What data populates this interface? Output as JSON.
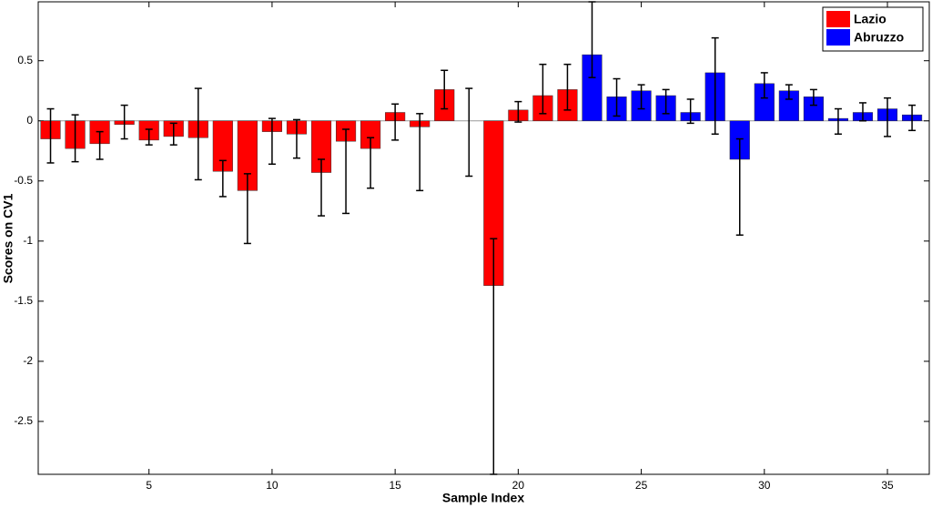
{
  "chart_data": {
    "type": "bar",
    "xlabel": "Sample Index",
    "ylabel": "Scores on CV1",
    "xlim": [
      0.5,
      36.7
    ],
    "ylim": [
      -2.94,
      0.99
    ],
    "xticks": [
      5,
      10,
      15,
      20,
      25,
      30,
      35
    ],
    "yticks": [
      0.5,
      0,
      -0.5,
      -1,
      -1.5,
      -2,
      -2.5
    ],
    "legend": "upper right",
    "series": [
      {
        "name": "Lazio",
        "color": "#ff0000",
        "x": [
          1,
          2,
          3,
          4,
          5,
          6,
          7,
          8,
          9,
          10,
          11,
          12,
          13,
          14,
          15,
          16,
          17,
          18,
          19,
          20,
          21,
          22
        ],
        "values": [
          -0.15,
          -0.23,
          -0.19,
          -0.03,
          -0.16,
          -0.13,
          -0.14,
          -0.42,
          -0.58,
          -0.09,
          -0.11,
          -0.43,
          -0.17,
          -0.23,
          0.07,
          -0.05,
          0.26,
          0,
          -1.37,
          0.09,
          0.21,
          0.26
        ],
        "error_bars": [
          [
            -0.35,
            0.1
          ],
          [
            -0.34,
            0.05
          ],
          [
            -0.32,
            -0.09
          ],
          [
            -0.15,
            0.13
          ],
          [
            -0.2,
            -0.07
          ],
          [
            -0.2,
            -0.02
          ],
          [
            -0.49,
            0.27
          ],
          [
            -0.63,
            -0.33
          ],
          [
            -1.02,
            -0.44
          ],
          [
            -0.36,
            0.02
          ],
          [
            -0.31,
            0.01
          ],
          [
            -0.79,
            -0.32
          ],
          [
            -0.77,
            -0.07
          ],
          [
            -0.56,
            -0.14
          ],
          [
            -0.16,
            0.14
          ],
          [
            -0.58,
            0.06
          ],
          [
            0.1,
            0.42
          ],
          [
            -0.46,
            0.27
          ],
          [
            -2.94,
            -0.98
          ],
          [
            -0.01,
            0.16
          ],
          [
            0.06,
            0.47
          ],
          [
            0.09,
            0.47
          ]
        ]
      },
      {
        "name": "Abruzzo",
        "color": "#0000ff",
        "x": [
          23,
          24,
          25,
          26,
          27,
          28,
          29,
          30,
          31,
          32,
          33,
          34,
          35,
          36
        ],
        "values": [
          0.55,
          0.2,
          0.25,
          0.21,
          0.07,
          0.4,
          -0.32,
          0.31,
          0.25,
          0.2,
          0.02,
          0.07,
          0.1,
          0.05
        ],
        "error_bars": [
          [
            0.36,
            0.99
          ],
          [
            0.04,
            0.35
          ],
          [
            0.1,
            0.3
          ],
          [
            0.06,
            0.26
          ],
          [
            -0.02,
            0.18
          ],
          [
            -0.11,
            0.69
          ],
          [
            -0.95,
            -0.15
          ],
          [
            0.19,
            0.4
          ],
          [
            0.18,
            0.3
          ],
          [
            0.13,
            0.26
          ],
          [
            -0.11,
            0.1
          ],
          [
            0.0,
            0.15
          ],
          [
            -0.13,
            0.19
          ],
          [
            -0.08,
            0.13
          ]
        ]
      }
    ]
  }
}
